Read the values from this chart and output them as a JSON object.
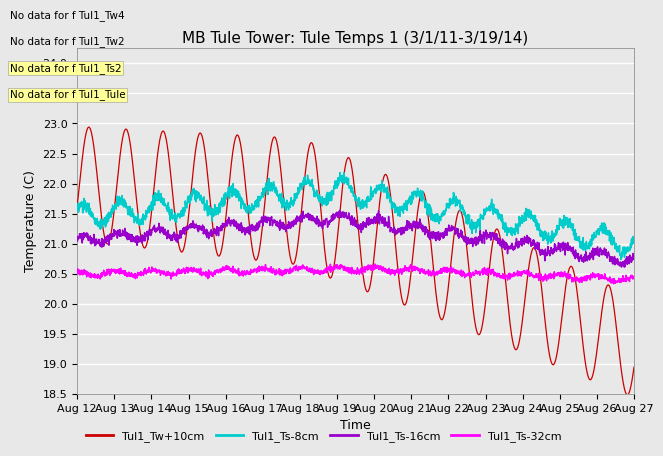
{
  "title": "MB Tule Tower: Tule Temps 1 (3/1/11-3/19/14)",
  "xlabel": "Time",
  "ylabel": "Temperature (C)",
  "ylim": [
    18.5,
    24.25
  ],
  "xlim": [
    0,
    15
  ],
  "yticks": [
    18.5,
    19.0,
    19.5,
    20.0,
    20.5,
    21.0,
    21.5,
    22.0,
    22.5,
    23.0,
    23.5,
    24.0
  ],
  "x_tick_labels": [
    "Aug 12",
    "Aug 13",
    "Aug 14",
    "Aug 15",
    "Aug 16",
    "Aug 17",
    "Aug 18",
    "Aug 19",
    "Aug 20",
    "Aug 21",
    "Aug 22",
    "Aug 23",
    "Aug 24",
    "Aug 25",
    "Aug 26",
    "Aug 27"
  ],
  "legend_entries": [
    {
      "label": "Tul1_Tw+10cm",
      "color": "#cc0000"
    },
    {
      "label": "Tul1_Ts-8cm",
      "color": "#00cccc"
    },
    {
      "label": "Tul1_Ts-16cm",
      "color": "#9900cc"
    },
    {
      "label": "Tul1_Ts-32cm",
      "color": "#ff00ff"
    }
  ],
  "no_data_texts": [
    "No data for f Tul1_Tw4",
    "No data for f Tul1_Tw2",
    "No data for f Tul1_Ts2",
    "No data for f Tul1_Tule"
  ],
  "background_color": "#e8e8e8",
  "plot_bg_color": "#e8e8e8",
  "grid_color": "#ffffff",
  "title_fontsize": 11,
  "axis_fontsize": 9,
  "tick_fontsize": 8
}
